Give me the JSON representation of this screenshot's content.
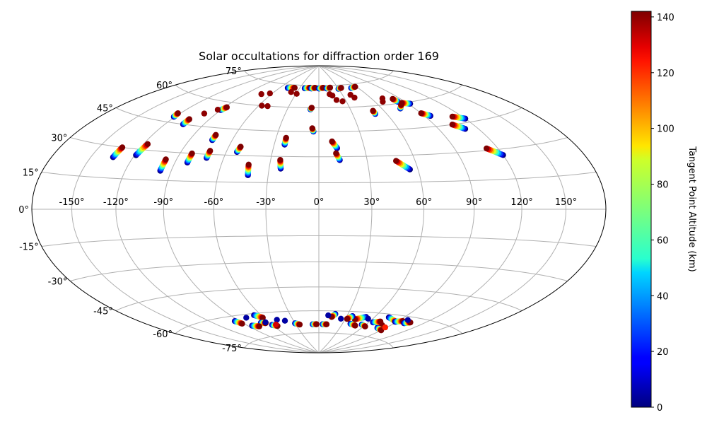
{
  "chart_data": {
    "type": "scatter",
    "projection": "hammer",
    "title": "Solar occultations for diffraction order 169",
    "xlabel": "",
    "ylabel": "",
    "xlim": [
      -180,
      180
    ],
    "ylim": [
      -90,
      90
    ],
    "x_ticks": [
      -150,
      -120,
      -90,
      -60,
      -30,
      0,
      30,
      60,
      90,
      120,
      150
    ],
    "x_tick_labels": [
      "-150°",
      "-120°",
      "-90°",
      "-60°",
      "-30°",
      "0°",
      "30°",
      "60°",
      "90°",
      "120°",
      "150°"
    ],
    "y_ticks": [
      -75,
      -60,
      -45,
      -30,
      -15,
      0,
      15,
      30,
      45,
      60,
      75
    ],
    "y_tick_labels": [
      "-75°",
      "-60°",
      "-45°",
      "-30°",
      "-15°",
      "0°",
      "15°",
      "30°",
      "45°",
      "60°",
      "75°"
    ],
    "grid": true,
    "colorbar": {
      "label": "Tangent Point Altitude (km)",
      "min": 0,
      "max": 142,
      "ticks": [
        0,
        20,
        40,
        60,
        80,
        100,
        120,
        140
      ],
      "colormap": "jet"
    },
    "tracks": [
      {
        "lon": [
          -134,
          -133
        ],
        "lat": [
          25,
          30
        ]
      },
      {
        "lon": [
          -119,
          -117
        ],
        "lat": [
          27,
          33
        ]
      },
      {
        "lon": [
          -97,
          -97
        ],
        "lat": [
          20,
          26
        ]
      },
      {
        "lon": [
          -82,
          -82
        ],
        "lat": [
          25,
          30
        ]
      },
      {
        "lon": [
          -71,
          -71
        ],
        "lat": [
          28,
          32
        ]
      },
      {
        "lon": [
          -53,
          -52
        ],
        "lat": [
          32,
          35
        ]
      },
      {
        "lon": [
          -42,
          -43
        ],
        "lat": [
          19,
          25
        ]
      },
      {
        "lon": [
          -23,
          -24
        ],
        "lat": [
          23,
          28
        ]
      },
      {
        "lon": [
          -23,
          -23
        ],
        "lat": [
          37,
          41
        ]
      },
      {
        "lon": [
          -74,
          -74
        ],
        "lat": [
          38,
          41
        ]
      },
      {
        "lon": [
          -106,
          -106
        ],
        "lat": [
          45,
          48
        ]
      },
      {
        "lon": [
          -121,
          -122
        ],
        "lat": [
          48,
          50
        ]
      },
      {
        "lon": [
          -90,
          -88
        ],
        "lat": [
          55,
          57
        ]
      },
      {
        "lon": [
          -8,
          -7
        ],
        "lat": [
          59,
          60
        ]
      },
      {
        "lon": [
          -4,
          -5
        ],
        "lat": [
          45,
          47
        ]
      },
      {
        "lon": [
          12,
          9
        ],
        "lat": [
          35,
          39
        ]
      },
      {
        "lon": [
          13,
          11
        ],
        "lat": [
          28,
          32
        ]
      },
      {
        "lon": [
          50,
          50
        ],
        "lat": [
          55,
          57
        ]
      },
      {
        "lon": [
          55,
          48
        ],
        "lat": [
          22,
          27
        ]
      },
      {
        "lon": [
          120,
          112
        ],
        "lat": [
          27,
          31
        ]
      },
      {
        "lon": [
          110,
          104
        ],
        "lat": [
          42,
          45
        ]
      },
      {
        "lon": [
          120,
          112
        ],
        "lat": [
          47,
          49
        ]
      },
      {
        "lon": [
          95,
          90
        ],
        "lat": [
          51,
          53
        ]
      },
      {
        "lon": [
          83,
          82
        ],
        "lat": [
          61,
          63
        ]
      },
      {
        "lon": [
          92,
          85
        ],
        "lat": [
          59,
          60
        ]
      },
      {
        "lon": [
          77,
          82
        ],
        "lat": [
          57,
          59
        ]
      },
      {
        "lon": [
          -22,
          -14
        ],
        "lat": [
          73,
          73.5
        ]
      },
      {
        "lon": [
          -12,
          -6
        ],
        "lat": [
          73,
          73.5
        ]
      },
      {
        "lon": [
          0,
          7
        ],
        "lat": [
          73,
          73.5
        ]
      },
      {
        "lon": [
          12,
          18
        ],
        "lat": [
          73,
          73.5
        ]
      },
      {
        "lon": [
          30,
          35
        ],
        "lat": [
          72.5,
          73
        ]
      },
      {
        "lon": [
          50,
          58
        ],
        "lat": [
          72.5,
          73
        ]
      },
      {
        "lon": [
          -48,
          -38
        ],
        "lat": [
          72.5,
          73
        ]
      },
      {
        "lon": [
          -95,
          -92
        ],
        "lat": [
          -63,
          -65
        ]
      },
      {
        "lon": [
          -67,
          -61
        ],
        "lat": [
          -61,
          -63
        ]
      },
      {
        "lon": [
          51,
          41
        ],
        "lat": [
          -63,
          -65
        ]
      },
      {
        "lon": [
          75,
          89
        ],
        "lat": [
          -62,
          -64
        ]
      },
      {
        "lon": [
          70,
          80
        ],
        "lat": [
          -66,
          -67
        ]
      },
      {
        "lon": [
          80,
          90
        ],
        "lat": [
          -69,
          -70
        ]
      },
      {
        "lon": [
          88,
          95
        ],
        "lat": [
          -64,
          -63
        ]
      },
      {
        "lon": [
          65,
          72
        ],
        "lat": [
          -66,
          -65
        ]
      },
      {
        "lon": [
          100,
          105
        ],
        "lat": [
          -64,
          -63
        ]
      },
      {
        "lon": [
          17,
          14
        ],
        "lat": [
          -62,
          -64
        ]
      },
      {
        "lon": [
          36,
          32
        ],
        "lat": [
          -63,
          -65
        ]
      },
      {
        "lon": [
          -70,
          -65
        ],
        "lat": [
          -66,
          -66.5
        ]
      },
      {
        "lon": [
          -60,
          -55
        ],
        "lat": [
          -68,
          -69
        ]
      },
      {
        "lon": [
          -85,
          -78
        ],
        "lat": [
          -67,
          -68
        ]
      },
      {
        "lon": [
          -30,
          -25
        ],
        "lat": [
          -68,
          -69
        ]
      },
      {
        "lon": [
          -8,
          -3
        ],
        "lat": [
          -69,
          -69
        ]
      },
      {
        "lon": [
          5,
          10
        ],
        "lat": [
          -69,
          -69
        ]
      },
      {
        "lon": [
          40,
          48
        ],
        "lat": [
          -68,
          -69
        ]
      },
      {
        "lon": [
          55,
          62
        ],
        "lat": [
          -68,
          -69
        ]
      }
    ],
    "points": [
      {
        "lon": -100,
        "lat": 52,
        "alt": 140
      },
      {
        "lon": -93,
        "lat": 55,
        "alt": 140
      },
      {
        "lon": -57,
        "lat": 60,
        "alt": 140
      },
      {
        "lon": -51,
        "lat": 60,
        "alt": 140
      },
      {
        "lon": -72,
        "lat": 67,
        "alt": 140
      },
      {
        "lon": -63,
        "lat": 68,
        "alt": 140
      },
      {
        "lon": -38,
        "lat": 70,
        "alt": 140
      },
      {
        "lon": -29,
        "lat": 69,
        "alt": 140
      },
      {
        "lon": 14,
        "lat": 69,
        "alt": 140
      },
      {
        "lon": 17,
        "lat": 68,
        "alt": 140
      },
      {
        "lon": 20,
        "lat": 65,
        "alt": 140
      },
      {
        "lon": 26,
        "lat": 64,
        "alt": 140
      },
      {
        "lon": 40,
        "lat": 68,
        "alt": 140
      },
      {
        "lon": 42,
        "lat": 66,
        "alt": 140
      },
      {
        "lon": 68,
        "lat": 62,
        "alt": 140
      },
      {
        "lon": 72,
        "lat": 64,
        "alt": 140
      },
      {
        "lon": -78,
        "lat": -62,
        "alt": 5
      },
      {
        "lon": -64,
        "lat": -66,
        "alt": 5
      },
      {
        "lon": -48,
        "lat": -65,
        "alt": 5
      },
      {
        "lon": -40,
        "lat": -66,
        "alt": 5
      },
      {
        "lon": 10,
        "lat": -63,
        "alt": 5
      },
      {
        "lon": 25,
        "lat": -65,
        "alt": 5
      },
      {
        "lon": 55,
        "lat": -64,
        "alt": 5
      },
      {
        "lon": 98,
        "lat": -62,
        "alt": 5
      },
      {
        "lon": -55,
        "lat": -68,
        "alt": 130
      },
      {
        "lon": 88,
        "lat": -68,
        "alt": 120
      }
    ]
  }
}
